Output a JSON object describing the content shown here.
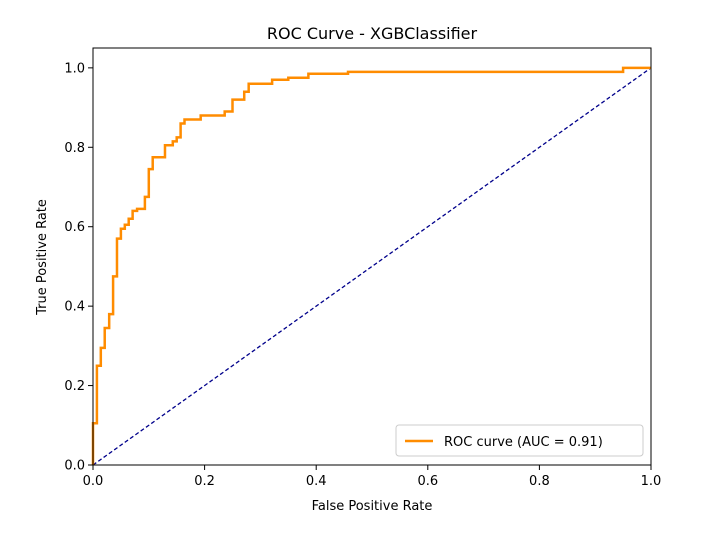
{
  "chart_data": {
    "type": "line",
    "title": "ROC Curve - XGBClassifier",
    "xlabel": "False Positive Rate",
    "ylabel": "True Positive Rate",
    "xlim": [
      0.0,
      1.0
    ],
    "ylim": [
      0.0,
      1.05
    ],
    "xticks": [
      0.0,
      0.2,
      0.4,
      0.6,
      0.8,
      1.0
    ],
    "xtick_labels": [
      "0.0",
      "0.2",
      "0.4",
      "0.6",
      "0.8",
      "1.0"
    ],
    "yticks": [
      0.0,
      0.2,
      0.4,
      0.6,
      0.8,
      1.0
    ],
    "ytick_labels": [
      "0.0",
      "0.2",
      "0.4",
      "0.6",
      "0.8",
      "1.0"
    ],
    "grid": false,
    "legend_position": "lower-right",
    "series": [
      {
        "name": "ROC curve (AUC = 0.91)",
        "color": "#ff8c00",
        "style": "solid",
        "x": [
          0.0,
          0.0,
          0.0,
          0.007,
          0.007,
          0.014,
          0.014,
          0.021,
          0.021,
          0.029,
          0.029,
          0.036,
          0.036,
          0.043,
          0.043,
          0.05,
          0.05,
          0.057,
          0.057,
          0.064,
          0.064,
          0.071,
          0.071,
          0.079,
          0.079,
          0.093,
          0.093,
          0.1,
          0.1,
          0.107,
          0.107,
          0.129,
          0.129,
          0.143,
          0.143,
          0.15,
          0.15,
          0.157,
          0.157,
          0.164,
          0.164,
          0.193,
          0.193,
          0.236,
          0.236,
          0.25,
          0.25,
          0.271,
          0.271,
          0.279,
          0.279,
          0.321,
          0.321,
          0.35,
          0.35,
          0.386,
          0.386,
          0.457,
          0.457,
          0.95,
          0.95,
          1.0
        ],
        "y": [
          0.0,
          0.02,
          0.105,
          0.105,
          0.25,
          0.25,
          0.295,
          0.295,
          0.345,
          0.345,
          0.38,
          0.38,
          0.475,
          0.475,
          0.57,
          0.57,
          0.595,
          0.595,
          0.605,
          0.605,
          0.62,
          0.62,
          0.64,
          0.64,
          0.645,
          0.645,
          0.675,
          0.675,
          0.745,
          0.745,
          0.775,
          0.775,
          0.805,
          0.805,
          0.815,
          0.815,
          0.825,
          0.825,
          0.86,
          0.86,
          0.87,
          0.87,
          0.88,
          0.88,
          0.89,
          0.89,
          0.92,
          0.92,
          0.94,
          0.94,
          0.96,
          0.96,
          0.97,
          0.97,
          0.975,
          0.975,
          0.985,
          0.985,
          0.99,
          0.99,
          1.0,
          1.0
        ]
      },
      {
        "name": "",
        "color": "#00008b",
        "style": "dashed",
        "x": [
          0.0,
          1.0
        ],
        "y": [
          0.0,
          1.0
        ]
      }
    ],
    "legend": [
      {
        "label": "ROC curve (AUC = 0.91)",
        "color": "#ff8c00"
      }
    ]
  }
}
